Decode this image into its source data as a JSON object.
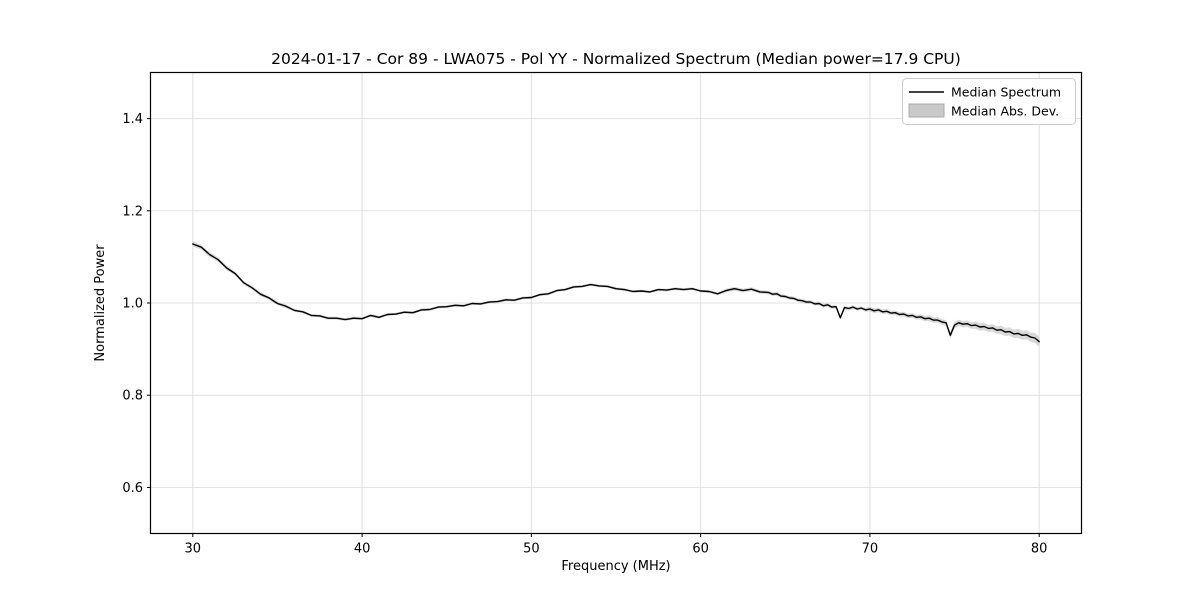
{
  "figure": {
    "background": "#ffffff"
  },
  "chart_data": {
    "type": "line",
    "title": "2024-01-17 - Cor 89 - LWA075 - Pol YY - Normalized Spectrum (Median power=17.9 CPU)",
    "xlabel": "Frequency (MHz)",
    "ylabel": "Normalized Power",
    "xlim": [
      27.5,
      82.5
    ],
    "ylim": [
      0.5,
      1.5
    ],
    "xticks": [
      30,
      40,
      50,
      60,
      70,
      80
    ],
    "yticks": [
      0.6,
      0.8,
      1.0,
      1.2,
      1.4
    ],
    "grid": true,
    "legend": {
      "position": "upper right",
      "entries": [
        {
          "label": "Median Spectrum",
          "type": "line",
          "color": "#000000"
        },
        {
          "label": "Median Abs. Dev.",
          "type": "patch",
          "color": "#c9c9c9"
        }
      ]
    },
    "colors": {
      "line": "#000000",
      "band": "#bfbfbf",
      "grid": "#e0e0e0",
      "spine": "#000000",
      "legend_border": "#cccccc",
      "background": "#ffffff"
    },
    "series": [
      {
        "name": "Median Spectrum",
        "note": "points are [frequency_MHz, normalized_power, median_abs_dev]; band = power ± mad",
        "points": [
          [
            30.0,
            1.128,
            0.006
          ],
          [
            30.5,
            1.121,
            0.005
          ],
          [
            31.0,
            1.105,
            0.005
          ],
          [
            31.5,
            1.094,
            0.005
          ],
          [
            32.0,
            1.076,
            0.005
          ],
          [
            32.5,
            1.064,
            0.004
          ],
          [
            33.0,
            1.044,
            0.004
          ],
          [
            33.5,
            1.033,
            0.004
          ],
          [
            34.0,
            1.019,
            0.004
          ],
          [
            34.5,
            1.011,
            0.004
          ],
          [
            35.0,
            0.999,
            0.004
          ],
          [
            35.5,
            0.993,
            0.004
          ],
          [
            36.0,
            0.984,
            0.003
          ],
          [
            36.5,
            0.981,
            0.003
          ],
          [
            37.0,
            0.973,
            0.003
          ],
          [
            37.5,
            0.972,
            0.003
          ],
          [
            38.0,
            0.967,
            0.003
          ],
          [
            38.5,
            0.967,
            0.003
          ],
          [
            39.0,
            0.964,
            0.003
          ],
          [
            39.5,
            0.967,
            0.003
          ],
          [
            40.0,
            0.966,
            0.003
          ],
          [
            40.5,
            0.973,
            0.003
          ],
          [
            41.0,
            0.969,
            0.003
          ],
          [
            41.5,
            0.975,
            0.003
          ],
          [
            42.0,
            0.976,
            0.003
          ],
          [
            42.5,
            0.98,
            0.003
          ],
          [
            43.0,
            0.979,
            0.003
          ],
          [
            43.5,
            0.985,
            0.003
          ],
          [
            44.0,
            0.986,
            0.003
          ],
          [
            44.5,
            0.991,
            0.003
          ],
          [
            45.0,
            0.992,
            0.003
          ],
          [
            45.5,
            0.995,
            0.003
          ],
          [
            46.0,
            0.994,
            0.003
          ],
          [
            46.5,
            0.999,
            0.003
          ],
          [
            47.0,
            0.998,
            0.003
          ],
          [
            47.5,
            1.002,
            0.003
          ],
          [
            48.0,
            1.003,
            0.003
          ],
          [
            48.5,
            1.007,
            0.003
          ],
          [
            49.0,
            1.006,
            0.003
          ],
          [
            49.5,
            1.011,
            0.003
          ],
          [
            50.0,
            1.012,
            0.003
          ],
          [
            50.5,
            1.018,
            0.003
          ],
          [
            51.0,
            1.02,
            0.003
          ],
          [
            51.5,
            1.027,
            0.003
          ],
          [
            52.0,
            1.029,
            0.003
          ],
          [
            52.5,
            1.035,
            0.003
          ],
          [
            53.0,
            1.036,
            0.003
          ],
          [
            53.5,
            1.04,
            0.003
          ],
          [
            54.0,
            1.037,
            0.003
          ],
          [
            54.5,
            1.036,
            0.003
          ],
          [
            55.0,
            1.031,
            0.003
          ],
          [
            55.5,
            1.029,
            0.003
          ],
          [
            56.0,
            1.025,
            0.003
          ],
          [
            56.5,
            1.026,
            0.003
          ],
          [
            57.0,
            1.024,
            0.003
          ],
          [
            57.5,
            1.029,
            0.003
          ],
          [
            58.0,
            1.028,
            0.003
          ],
          [
            58.5,
            1.031,
            0.003
          ],
          [
            59.0,
            1.029,
            0.003
          ],
          [
            59.5,
            1.031,
            0.003
          ],
          [
            60.0,
            1.026,
            0.003
          ],
          [
            60.5,
            1.025,
            0.003
          ],
          [
            61.0,
            1.02,
            0.003
          ],
          [
            61.5,
            1.027,
            0.004
          ],
          [
            62.0,
            1.031,
            0.004
          ],
          [
            62.5,
            1.027,
            0.004
          ],
          [
            63.0,
            1.03,
            0.004
          ],
          [
            63.5,
            1.024,
            0.004
          ],
          [
            64.0,
            1.023,
            0.004
          ],
          [
            64.25,
            1.019,
            0.004
          ],
          [
            64.5,
            1.02,
            0.004
          ],
          [
            64.75,
            1.015,
            0.004
          ],
          [
            65.0,
            1.014,
            0.004
          ],
          [
            65.25,
            1.011,
            0.004
          ],
          [
            65.5,
            1.01,
            0.004
          ],
          [
            65.75,
            1.006,
            0.004
          ],
          [
            66.0,
            1.005,
            0.004
          ],
          [
            66.25,
            1.002,
            0.004
          ],
          [
            66.5,
            1.002,
            0.004
          ],
          [
            66.75,
            0.998,
            0.004
          ],
          [
            67.0,
            0.999,
            0.004
          ],
          [
            67.25,
            0.994,
            0.004
          ],
          [
            67.5,
            0.996,
            0.004
          ],
          [
            67.75,
            0.991,
            0.004
          ],
          [
            68.0,
            0.992,
            0.004
          ],
          [
            68.25,
            0.968,
            0.004
          ],
          [
            68.5,
            0.99,
            0.004
          ],
          [
            68.75,
            0.988,
            0.004
          ],
          [
            69.0,
            0.991,
            0.004
          ],
          [
            69.25,
            0.987,
            0.004
          ],
          [
            69.5,
            0.989,
            0.004
          ],
          [
            69.75,
            0.985,
            0.004
          ],
          [
            70.0,
            0.987,
            0.005
          ],
          [
            70.25,
            0.983,
            0.005
          ],
          [
            70.5,
            0.985,
            0.005
          ],
          [
            70.75,
            0.981,
            0.005
          ],
          [
            71.0,
            0.982,
            0.005
          ],
          [
            71.25,
            0.978,
            0.005
          ],
          [
            71.5,
            0.979,
            0.005
          ],
          [
            71.75,
            0.975,
            0.005
          ],
          [
            72.0,
            0.976,
            0.005
          ],
          [
            72.25,
            0.972,
            0.005
          ],
          [
            72.5,
            0.973,
            0.005
          ],
          [
            72.75,
            0.969,
            0.005
          ],
          [
            73.0,
            0.97,
            0.006
          ],
          [
            73.25,
            0.966,
            0.006
          ],
          [
            73.5,
            0.967,
            0.006
          ],
          [
            73.75,
            0.963,
            0.006
          ],
          [
            74.0,
            0.963,
            0.006
          ],
          [
            74.25,
            0.959,
            0.006
          ],
          [
            74.5,
            0.957,
            0.006
          ],
          [
            74.75,
            0.93,
            0.007
          ],
          [
            75.0,
            0.952,
            0.007
          ],
          [
            75.25,
            0.957,
            0.007
          ],
          [
            75.5,
            0.954,
            0.007
          ],
          [
            75.75,
            0.955,
            0.007
          ],
          [
            76.0,
            0.951,
            0.007
          ],
          [
            76.25,
            0.952,
            0.008
          ],
          [
            76.5,
            0.948,
            0.008
          ],
          [
            76.75,
            0.949,
            0.008
          ],
          [
            77.0,
            0.945,
            0.008
          ],
          [
            77.25,
            0.946,
            0.008
          ],
          [
            77.5,
            0.941,
            0.008
          ],
          [
            77.75,
            0.942,
            0.009
          ],
          [
            78.0,
            0.937,
            0.009
          ],
          [
            78.25,
            0.938,
            0.009
          ],
          [
            78.5,
            0.933,
            0.009
          ],
          [
            78.75,
            0.934,
            0.01
          ],
          [
            79.0,
            0.93,
            0.01
          ],
          [
            79.25,
            0.931,
            0.01
          ],
          [
            79.5,
            0.926,
            0.01
          ],
          [
            79.75,
            0.924,
            0.011
          ],
          [
            80.0,
            0.916,
            0.011
          ]
        ]
      }
    ]
  }
}
